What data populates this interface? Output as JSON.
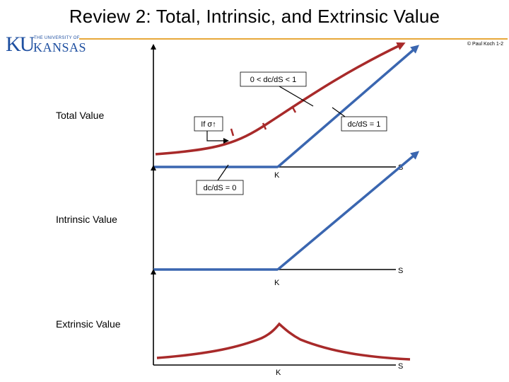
{
  "header": {
    "title": "Review 2:  Total,  Intrinsic,  and  Extrinsic Value",
    "logo_ku": "KU",
    "logo_university": "THE UNIVERSITY OF",
    "logo_kansas": "KANSAS",
    "copyright": "© Paul Koch 1-2"
  },
  "labels": {
    "total_value": "Total Value",
    "intrinsic_value": "Intrinsic Value",
    "extrinsic_value": "Extrinsic Value"
  },
  "annotations": {
    "slope_between": "0 < dc/dS < 1",
    "if_sigma": "If σ↑",
    "slope_one": "dc/dS = 1",
    "slope_zero": "dc/dS = 0"
  },
  "axes": {
    "total": {
      "k_label": "K",
      "s_label": "S"
    },
    "intrinsic": {
      "k_label": "K",
      "s_label": "S"
    },
    "extrinsic": {
      "k_label": "K",
      "s_label": "S"
    }
  },
  "colors": {
    "axis": "#000000",
    "intrinsic_line": "#3a66b0",
    "option_curve": "#a82a2a",
    "title_rule": "#e8a83a",
    "logo": "#1e4fa0"
  }
}
